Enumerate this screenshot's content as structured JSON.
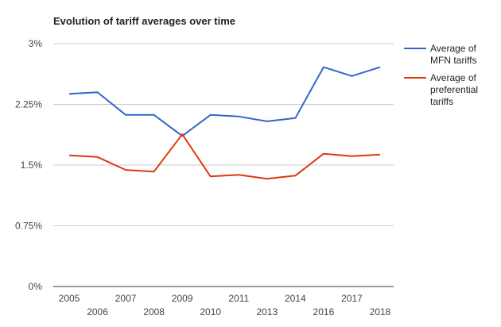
{
  "chart_data": {
    "type": "line",
    "title": "Evolution of tariff averages over time",
    "xlabel": "",
    "ylabel": "",
    "categories": [
      "2005",
      "2006",
      "2007",
      "2008",
      "2009",
      "2010",
      "2011",
      "2013",
      "2014",
      "2016",
      "2017",
      "2018"
    ],
    "y_ticks": [
      "0%",
      "0.75%",
      "1.5%",
      "2.25%",
      "3%"
    ],
    "ylim": [
      0,
      3
    ],
    "legend_position": "right",
    "series": [
      {
        "name_lines": [
          "Average of",
          "MFN tariffs"
        ],
        "color": "#3366cc",
        "values": [
          2.38,
          2.4,
          2.12,
          2.12,
          1.86,
          2.12,
          2.1,
          2.04,
          2.08,
          2.71,
          2.6,
          2.71
        ]
      },
      {
        "name_lines": [
          "Average of",
          "preferential",
          "tariffs"
        ],
        "color": "#dc3912",
        "values": [
          1.62,
          1.6,
          1.44,
          1.42,
          1.88,
          1.36,
          1.38,
          1.33,
          1.37,
          1.64,
          1.61,
          1.63
        ]
      }
    ],
    "grid": true
  }
}
